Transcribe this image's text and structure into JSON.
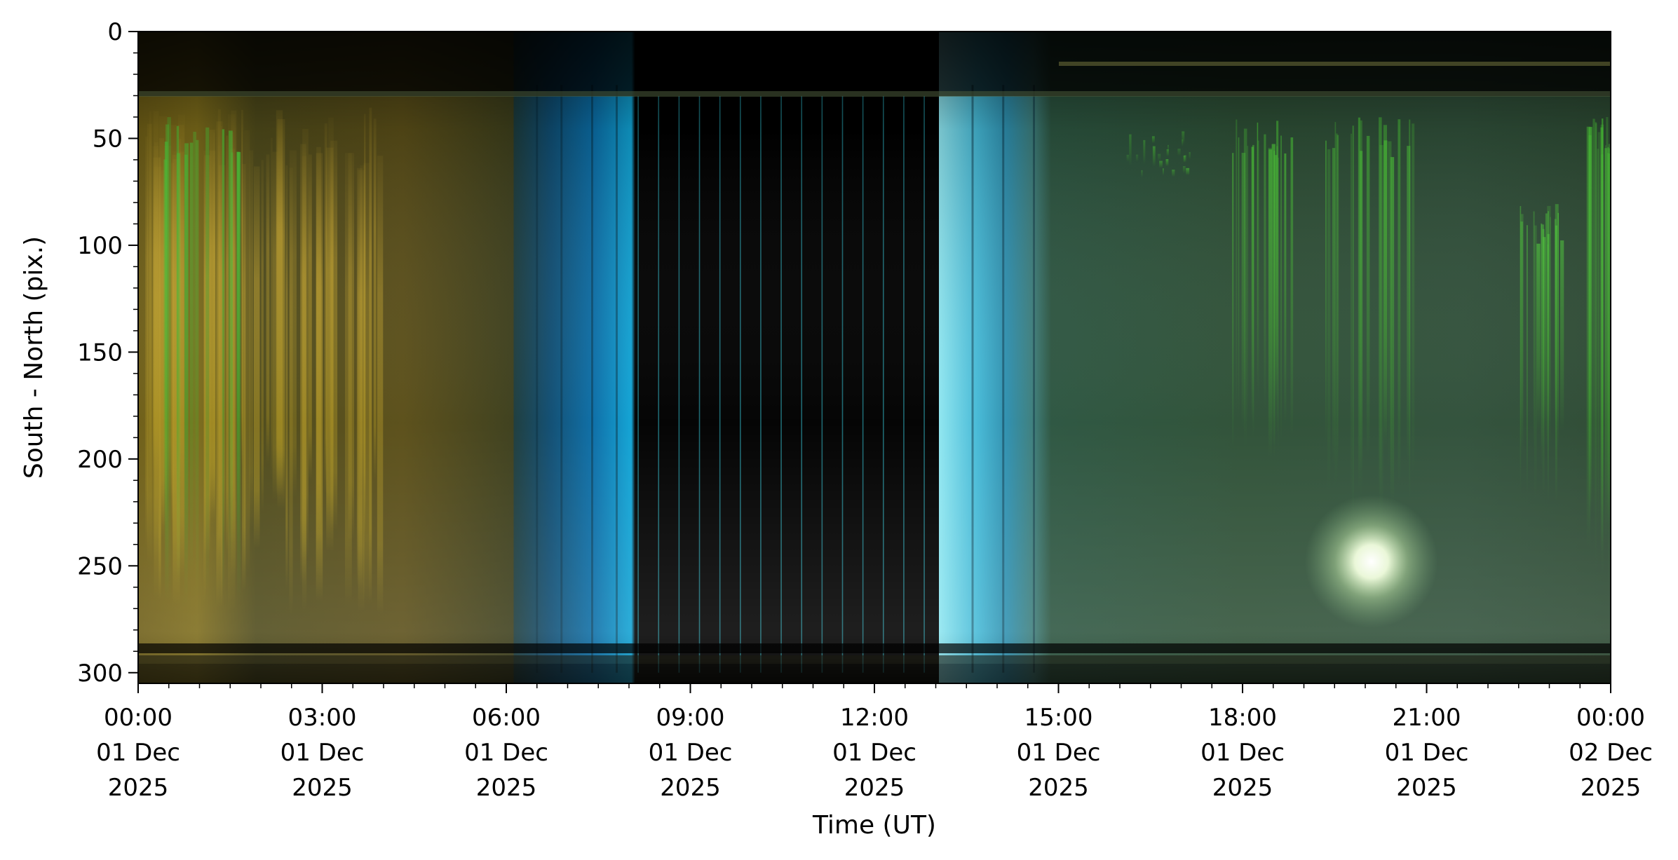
{
  "chart_data": {
    "type": "heatmap",
    "title": "",
    "xlabel": "Time (UT)",
    "ylabel": "South - North (pix.)",
    "y_inverted": true,
    "ylim": [
      305,
      0
    ],
    "yticks": [
      0,
      50,
      100,
      150,
      200,
      250,
      300
    ],
    "y_minor_step": 10,
    "xlim_hours": [
      0,
      24
    ],
    "x_minor_step_hours": 0.5,
    "xticks": [
      {
        "hour": 0,
        "time": "00:00",
        "date": "01 Dec",
        "year": "2025"
      },
      {
        "hour": 3,
        "time": "03:00",
        "date": "01 Dec",
        "year": "2025"
      },
      {
        "hour": 6,
        "time": "06:00",
        "date": "01 Dec",
        "year": "2025"
      },
      {
        "hour": 9,
        "time": "09:00",
        "date": "01 Dec",
        "year": "2025"
      },
      {
        "hour": 12,
        "time": "12:00",
        "date": "01 Dec",
        "year": "2025"
      },
      {
        "hour": 15,
        "time": "15:00",
        "date": "01 Dec",
        "year": "2025"
      },
      {
        "hour": 18,
        "time": "18:00",
        "date": "01 Dec",
        "year": "2025"
      },
      {
        "hour": 21,
        "time": "21:00",
        "date": "01 Dec",
        "year": "2025"
      },
      {
        "hour": 24,
        "time": "00:00",
        "date": "02 Dec",
        "year": "2025"
      }
    ],
    "colors": {
      "yellow_aurora": "#8a7a1e",
      "olive_background": "#3c3e1a",
      "blue_twilight": "#1f8fc4",
      "cyan_twilight": "#7fe6f2",
      "daylight_gap": "#000000",
      "green_background": "#2f4d33",
      "green_aurora": "#3fae2c",
      "moon_glow": "#f4ffe8"
    },
    "regions": [
      {
        "name": "yellow-aurora",
        "start_hour": 0.0,
        "end_hour": 4.2
      },
      {
        "name": "olive-night",
        "start_hour": 4.2,
        "end_hour": 6.2
      },
      {
        "name": "blue-twilight",
        "start_hour": 6.2,
        "end_hour": 8.1
      },
      {
        "name": "daylight-gap",
        "start_hour": 8.1,
        "end_hour": 13.05
      },
      {
        "name": "cyan-twilight",
        "start_hour": 13.05,
        "end_hour": 14.6
      },
      {
        "name": "green-night",
        "start_hour": 14.6,
        "end_hour": 24.0
      }
    ],
    "bright_spot": {
      "hour": 20.1,
      "pixel": 248
    }
  }
}
